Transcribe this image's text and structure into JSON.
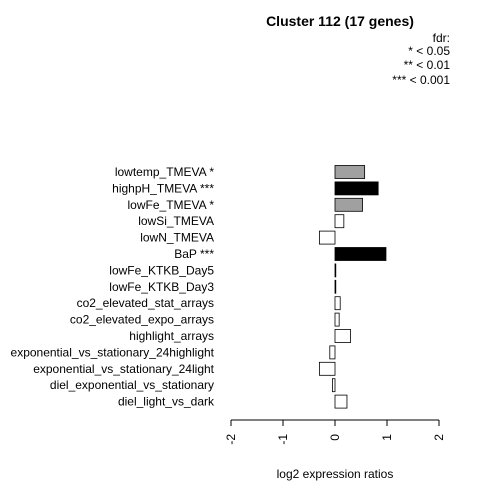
{
  "chart_data": {
    "type": "bar",
    "orientation": "horizontal",
    "title": "Cluster 112 (17 genes)",
    "xlabel": "log2 expression ratios",
    "ylabel": "",
    "xlim": [
      -2,
      2
    ],
    "xticks": [
      "-2",
      "-1",
      "0",
      "1",
      "2"
    ],
    "legend": {
      "title": "fdr:",
      "entries": [
        "* < 0.05",
        "** < 0.01",
        "*** < 0.001"
      ],
      "placement": "top-right"
    },
    "bars": [
      {
        "label": "lowtemp_TMEVA *",
        "value": 0.57,
        "fill": "#a0a0a0"
      },
      {
        "label": "highpH_TMEVA ***",
        "value": 0.83,
        "fill": "#000000"
      },
      {
        "label": "lowFe_TMEVA *",
        "value": 0.53,
        "fill": "#a0a0a0"
      },
      {
        "label": "lowSi_TMEVA",
        "value": 0.17,
        "fill": "#ffffff"
      },
      {
        "label": "lowN_TMEVA",
        "value": -0.3,
        "fill": "#ffffff"
      },
      {
        "label": "BaP ***",
        "value": 0.98,
        "fill": "#000000"
      },
      {
        "label": "lowFe_KTKB_Day5",
        "value": 0.01,
        "fill": "#ffffff"
      },
      {
        "label": "lowFe_KTKB_Day3",
        "value": 0.01,
        "fill": "#ffffff"
      },
      {
        "label": "co2_elevated_stat_arrays",
        "value": 0.1,
        "fill": "#ffffff"
      },
      {
        "label": "co2_elevated_expo_arrays",
        "value": 0.08,
        "fill": "#ffffff"
      },
      {
        "label": "highlight_arrays",
        "value": 0.3,
        "fill": "#ffffff"
      },
      {
        "label": "exponential_vs_stationary_24highlight",
        "value": -0.1,
        "fill": "#ffffff"
      },
      {
        "label": "exponential_vs_stationary_24light",
        "value": -0.3,
        "fill": "#ffffff"
      },
      {
        "label": "diel_exponential_vs_stationary",
        "value": -0.05,
        "fill": "#ffffff"
      },
      {
        "label": "diel_light_vs_dark",
        "value": 0.23,
        "fill": "#ffffff"
      }
    ]
  }
}
